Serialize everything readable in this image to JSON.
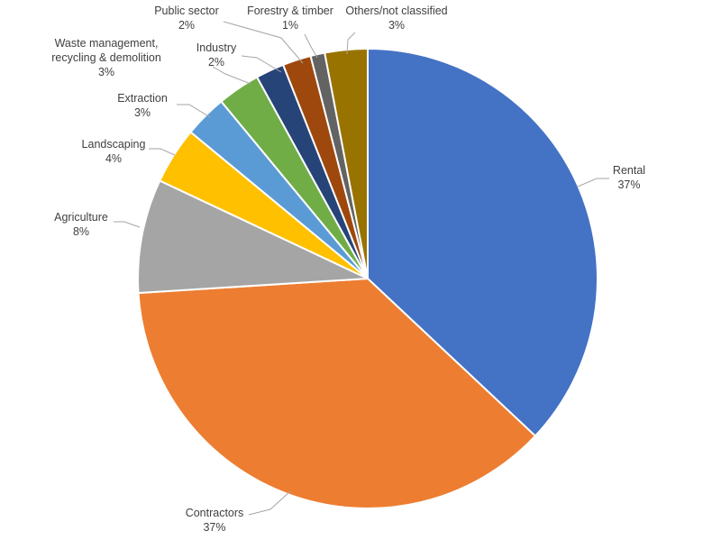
{
  "chart_data": {
    "type": "pie",
    "title": "",
    "slices": [
      {
        "name": "Rental",
        "value": 37,
        "label": "37%",
        "color": "#4472C4"
      },
      {
        "name": "Contractors",
        "value": 37,
        "label": "37%",
        "color": "#ED7D31"
      },
      {
        "name": "Agriculture",
        "value": 8,
        "label": "8%",
        "color": "#A5A5A5"
      },
      {
        "name": "Landscaping",
        "value": 4,
        "label": "4%",
        "color": "#FFC000"
      },
      {
        "name": "Extraction",
        "value": 3,
        "label": "3%",
        "color": "#5B9BD5"
      },
      {
        "name": "Waste management, recycling & demolition",
        "value": 3,
        "label": "3%",
        "color": "#70AD47"
      },
      {
        "name": "Industry",
        "value": 2,
        "label": "2%",
        "color": "#264478"
      },
      {
        "name": "Public sector",
        "value": 2,
        "label": "2%",
        "color": "#9E480E"
      },
      {
        "name": "Forestry & timber",
        "value": 1,
        "label": "1%",
        "color": "#636363"
      },
      {
        "name": "Others/not classified",
        "value": 3,
        "label": "3%",
        "color": "#997300"
      }
    ],
    "data_labels": "category name and percentage, outside end with leader lines",
    "legend": "none",
    "start_angle": "12 o'clock, clockwise"
  }
}
